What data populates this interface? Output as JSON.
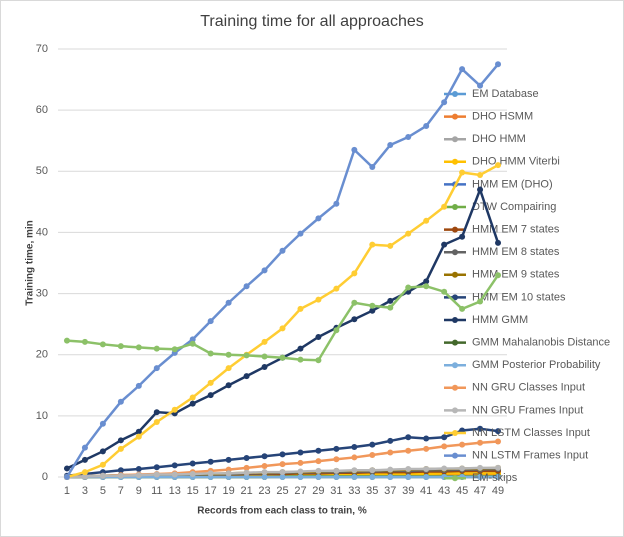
{
  "chart_data": {
    "type": "line",
    "title": "Training time for all approaches",
    "x_label": "Records from each class to train, %",
    "y_label": "Training time, min",
    "categories": [
      "1",
      "3",
      "5",
      "7",
      "9",
      "11",
      "13",
      "15",
      "17",
      "19",
      "21",
      "23",
      "25",
      "27",
      "29",
      "31",
      "33",
      "35",
      "37",
      "39",
      "41",
      "43",
      "45",
      "47",
      "49"
    ],
    "ylim": [
      0,
      70
    ],
    "yticks": [
      0,
      10,
      20,
      30,
      40,
      50,
      60,
      70
    ],
    "grid": true,
    "legend": "right",
    "series": [
      {
        "name": "EM Database",
        "color": "#5b9bd5",
        "values": [
          0,
          0,
          0.1,
          0.1,
          0.1,
          0.1,
          0.1,
          0.1,
          0.1,
          0.1,
          0.1,
          0.1,
          0.2,
          0.2,
          0.2,
          0.2,
          0.2,
          0.2,
          0.2,
          0.2,
          0.2,
          0.2,
          0.3,
          0.3,
          0.3
        ]
      },
      {
        "name": "DHO HSMM",
        "color": "#ed7d31",
        "values": [
          0,
          0,
          0,
          0.1,
          0.1,
          0.1,
          0.1,
          0.1,
          0.1,
          0.2,
          0.2,
          0.2,
          0.2,
          0.2,
          0.3,
          0.3,
          0.3,
          0.3,
          0.3,
          0.4,
          0.4,
          0.4,
          0.4,
          0.4,
          0.5
        ]
      },
      {
        "name": "DHO HMM",
        "color": "#a5a5a5",
        "values": [
          0,
          0.1,
          0.1,
          0.2,
          0.2,
          0.3,
          0.3,
          0.3,
          0.4,
          0.4,
          0.5,
          0.5,
          0.5,
          0.6,
          0.6,
          0.7,
          0.7,
          0.7,
          0.8,
          0.8,
          0.9,
          0.9,
          0.9,
          1,
          1
        ]
      },
      {
        "name": "DHO HMM Viterbi",
        "color": "#ffc000",
        "values": [
          0,
          0,
          0.1,
          0.1,
          0.1,
          0.2,
          0.2,
          0.2,
          0.2,
          0.3,
          0.3,
          0.3,
          0.3,
          0.4,
          0.4,
          0.4,
          0.4,
          0.5,
          0.5,
          0.5,
          0.5,
          0.6,
          0.6,
          0.6,
          0.6
        ]
      },
      {
        "name": "HMM EM (DHO)",
        "color": "#4472c4",
        "values": [
          0,
          0.1,
          0.1,
          0.2,
          0.2,
          0.3,
          0.3,
          0.4,
          0.4,
          0.5,
          0.5,
          0.6,
          0.6,
          0.7,
          0.7,
          0.8,
          0.8,
          0.9,
          0.9,
          1,
          1,
          1.1,
          1.1,
          1.2,
          1.2
        ]
      },
      {
        "name": "DTW Compairing",
        "color": "#70ad47",
        "values": [
          0,
          0,
          0,
          0,
          0,
          0,
          0,
          0,
          0,
          0,
          0,
          0,
          0.1,
          0.1,
          0.1,
          0.1,
          0.1,
          0.1,
          0.1,
          0.1,
          0.1,
          0.1,
          0.1,
          0.1,
          0.1
        ]
      },
      {
        "name": "HMM EM 7 states",
        "color": "#9e480e",
        "values": [
          0,
          0.1,
          0.1,
          0.2,
          0.2,
          0.3,
          0.3,
          0.3,
          0.4,
          0.4,
          0.5,
          0.5,
          0.5,
          0.6,
          0.6,
          0.7,
          0.7,
          0.8,
          0.8,
          0.8,
          0.9,
          0.9,
          1,
          1,
          1
        ]
      },
      {
        "name": "HMM EM 8 states",
        "color": "#636363",
        "values": [
          0,
          0.1,
          0.2,
          0.2,
          0.3,
          0.3,
          0.4,
          0.4,
          0.5,
          0.5,
          0.6,
          0.6,
          0.7,
          0.7,
          0.8,
          0.8,
          0.9,
          0.9,
          1,
          1,
          1.1,
          1.1,
          1.2,
          1.2,
          1.3
        ]
      },
      {
        "name": "HMM EM 9 states",
        "color": "#997300",
        "values": [
          0,
          0.1,
          0.2,
          0.3,
          0.3,
          0.4,
          0.4,
          0.5,
          0.5,
          0.6,
          0.7,
          0.7,
          0.8,
          0.8,
          0.9,
          1,
          1,
          1.1,
          1.1,
          1.2,
          1.3,
          1.3,
          1.4,
          1.4,
          1.5
        ]
      },
      {
        "name": "HMM EM 10 states",
        "color": "#264478",
        "values": [
          0.2,
          0.5,
          0.8,
          1.1,
          1.3,
          1.6,
          1.9,
          2.2,
          2.5,
          2.8,
          3.1,
          3.4,
          3.7,
          4,
          4.3,
          4.6,
          4.9,
          5.3,
          5.9,
          6.5,
          6.3,
          6.5,
          7.6,
          7.9,
          7.5
        ]
      },
      {
        "name": "HMM GMM",
        "color": "#1f3864",
        "values": [
          1.4,
          2.8,
          4.2,
          6,
          7.4,
          10.6,
          10.4,
          12,
          13.4,
          15,
          16.5,
          18,
          19.5,
          21,
          22.9,
          24.4,
          25.8,
          27.2,
          28.8,
          30.3,
          32,
          38,
          39.3,
          47,
          38.3
        ]
      },
      {
        "name": "GMM Mahalanobis Distance",
        "color": "#43682b",
        "values": [
          0,
          0,
          0,
          0,
          0,
          0,
          0,
          0,
          0,
          0,
          0,
          0,
          0,
          0,
          0,
          0,
          0,
          0,
          0,
          0,
          0,
          0,
          0,
          0,
          0
        ]
      },
      {
        "name": "GMM Posterior Probability",
        "color": "#7cafdd",
        "values": [
          0,
          0,
          0,
          0,
          0,
          0,
          0,
          0,
          0,
          0,
          0,
          0,
          0,
          0,
          0,
          0,
          0,
          0,
          0,
          0,
          0,
          0,
          0,
          0,
          0
        ]
      },
      {
        "name": "NN GRU Classes Input",
        "color": "#f1975a",
        "values": [
          0,
          0.1,
          0.2,
          0.3,
          0.4,
          0.5,
          0.6,
          0.8,
          1,
          1.2,
          1.5,
          1.8,
          2.1,
          2.3,
          2.6,
          2.9,
          3.2,
          3.6,
          4,
          4.3,
          4.6,
          5,
          5.3,
          5.6,
          5.8
        ]
      },
      {
        "name": "NN GRU Frames Input",
        "color": "#b7b7b7",
        "values": [
          0,
          0.1,
          0.2,
          0.2,
          0.3,
          0.4,
          0.4,
          0.5,
          0.6,
          0.6,
          0.7,
          0.8,
          0.8,
          0.9,
          1,
          1,
          1.1,
          1.1,
          1.2,
          1.3,
          1.3,
          1.4,
          1.4,
          1.5,
          1.5
        ]
      },
      {
        "name": "NN LSTM Classes Input",
        "color": "#ffcd33",
        "values": [
          0,
          0.8,
          2,
          4.6,
          6.6,
          9,
          11,
          13,
          15.4,
          17.8,
          20,
          22.1,
          24.3,
          27.5,
          29,
          30.8,
          33.3,
          38,
          37.8,
          39.8,
          41.9,
          44.2,
          49.8,
          49.4,
          51
        ]
      },
      {
        "name": "NN LSTM Frames Input",
        "color": "#698ed0",
        "values": [
          0,
          4.8,
          8.7,
          12.3,
          14.9,
          17.8,
          20.3,
          22.5,
          25.5,
          28.5,
          31.2,
          33.8,
          37,
          39.8,
          42.3,
          44.7,
          53.5,
          50.7,
          54.3,
          55.6,
          57.4,
          61.3,
          66.7,
          64,
          67.5
        ]
      },
      {
        "name": "EM-skips",
        "color": "#8cc168",
        "values": [
          22.3,
          22.1,
          21.7,
          21.4,
          21.2,
          21,
          20.9,
          21.8,
          20.2,
          20,
          19.9,
          19.7,
          19.5,
          19.2,
          19.1,
          24,
          28.5,
          28,
          27.7,
          31,
          31.2,
          30.3,
          27.5,
          28.7,
          33
        ]
      }
    ]
  }
}
